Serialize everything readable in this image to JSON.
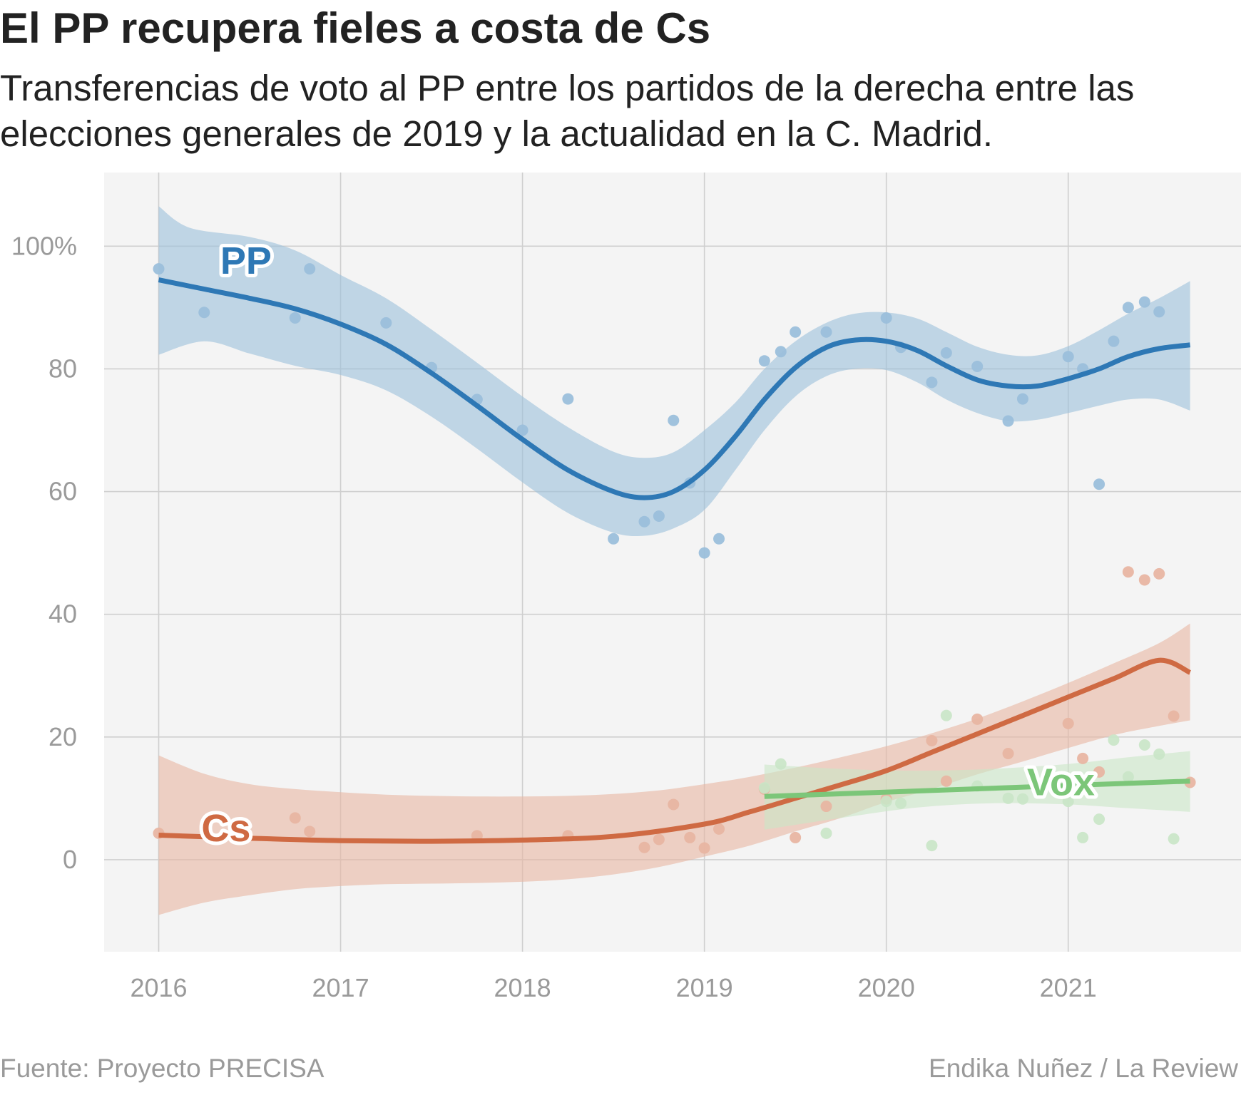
{
  "header": {
    "title": "El PP recupera fieles a costa de Cs",
    "subtitle": "Transferencias de voto al PP entre los partidos de la derecha entre las elecciones generales de 2019 y la actualidad en la C. Madrid."
  },
  "footer": {
    "source": "Fuente: Proyecto PRECISA",
    "credit": "Endika Nuñez / La Review"
  },
  "chart_data": {
    "type": "scatter",
    "title": "El PP recupera fieles a costa de Cs",
    "subtitle": "Transferencias de voto al PP entre los partidos de la derecha entre las elecciones generales de 2019 y la actualidad en la C. Madrid.",
    "xlabel": "",
    "ylabel": "",
    "xlim": [
      2015.7,
      2021.95
    ],
    "ylim": [
      -15,
      112
    ],
    "x_ticks": [
      2016,
      2017,
      2018,
      2019,
      2020,
      2021
    ],
    "x_tick_labels": [
      "2016",
      "2017",
      "2018",
      "2019",
      "2020",
      "2021"
    ],
    "y_ticks": [
      0,
      20,
      40,
      60,
      80,
      100
    ],
    "y_tick_labels": [
      "0",
      "20",
      "40",
      "60",
      "80",
      "100%"
    ],
    "grid": true,
    "legend": "direct labels on lines",
    "background": "#f4f4f4",
    "series": [
      {
        "name": "PP",
        "color": "#2e78b5",
        "band_color": "#9bbfdb",
        "points": [
          [
            2016.0,
            96.3
          ],
          [
            2016.25,
            89.2
          ],
          [
            2016.75,
            88.3
          ],
          [
            2016.83,
            96.3
          ],
          [
            2017.25,
            87.5
          ],
          [
            2017.5,
            80.2
          ],
          [
            2017.75,
            75.0
          ],
          [
            2018.0,
            70.0
          ],
          [
            2018.25,
            75.1
          ],
          [
            2018.5,
            52.3
          ],
          [
            2018.67,
            55.1
          ],
          [
            2018.75,
            56.0
          ],
          [
            2018.83,
            71.6
          ],
          [
            2018.92,
            61.4
          ],
          [
            2019.0,
            50.0
          ],
          [
            2019.08,
            52.3
          ],
          [
            2019.33,
            81.3
          ],
          [
            2019.42,
            82.8
          ],
          [
            2019.5,
            86.0
          ],
          [
            2019.67,
            86.0
          ],
          [
            2020.0,
            88.3
          ],
          [
            2020.08,
            83.5
          ],
          [
            2020.25,
            77.8
          ],
          [
            2020.33,
            82.6
          ],
          [
            2020.5,
            80.4
          ],
          [
            2020.67,
            71.5
          ],
          [
            2020.75,
            75.1
          ],
          [
            2021.0,
            82.0
          ],
          [
            2021.08,
            80.0
          ],
          [
            2021.17,
            61.2
          ],
          [
            2021.25,
            84.5
          ],
          [
            2021.33,
            90.0
          ],
          [
            2021.42,
            90.9
          ],
          [
            2021.5,
            89.3
          ]
        ],
        "fit": [
          [
            2016.0,
            94.5
          ],
          [
            2016.25,
            93.0
          ],
          [
            2016.5,
            91.5
          ],
          [
            2016.75,
            89.8
          ],
          [
            2017.0,
            87.3
          ],
          [
            2017.25,
            84.0
          ],
          [
            2017.5,
            79.3
          ],
          [
            2017.75,
            74.0
          ],
          [
            2018.0,
            68.5
          ],
          [
            2018.25,
            63.5
          ],
          [
            2018.5,
            60.0
          ],
          [
            2018.67,
            59.0
          ],
          [
            2018.83,
            60.0
          ],
          [
            2019.0,
            63.5
          ],
          [
            2019.17,
            69.0
          ],
          [
            2019.33,
            75.0
          ],
          [
            2019.5,
            80.2
          ],
          [
            2019.67,
            83.5
          ],
          [
            2019.83,
            84.7
          ],
          [
            2020.0,
            84.5
          ],
          [
            2020.17,
            83.0
          ],
          [
            2020.33,
            80.5
          ],
          [
            2020.5,
            78.2
          ],
          [
            2020.67,
            77.2
          ],
          [
            2020.83,
            77.2
          ],
          [
            2021.0,
            78.4
          ],
          [
            2021.17,
            80.0
          ],
          [
            2021.33,
            82.0
          ],
          [
            2021.5,
            83.3
          ],
          [
            2021.67,
            83.9
          ]
        ],
        "band_upper": [
          [
            2016.0,
            106.5
          ],
          [
            2016.17,
            103.0
          ],
          [
            2016.5,
            101.5
          ],
          [
            2016.75,
            99.3
          ],
          [
            2017.0,
            95.3
          ],
          [
            2017.25,
            91.5
          ],
          [
            2017.5,
            86.4
          ],
          [
            2017.75,
            81.0
          ],
          [
            2018.0,
            75.5
          ],
          [
            2018.25,
            70.5
          ],
          [
            2018.5,
            66.5
          ],
          [
            2018.67,
            65.5
          ],
          [
            2018.83,
            66.4
          ],
          [
            2019.0,
            70.0
          ],
          [
            2019.17,
            74.5
          ],
          [
            2019.33,
            80.0
          ],
          [
            2019.5,
            84.5
          ],
          [
            2019.67,
            87.5
          ],
          [
            2019.83,
            89.0
          ],
          [
            2020.0,
            89.2
          ],
          [
            2020.17,
            88.2
          ],
          [
            2020.33,
            86.0
          ],
          [
            2020.5,
            83.6
          ],
          [
            2020.67,
            82.3
          ],
          [
            2020.83,
            82.2
          ],
          [
            2021.0,
            83.7
          ],
          [
            2021.17,
            86.3
          ],
          [
            2021.33,
            89.0
          ],
          [
            2021.5,
            91.5
          ],
          [
            2021.67,
            94.3
          ]
        ],
        "band_lower": [
          [
            2016.0,
            82.3
          ],
          [
            2016.25,
            84.5
          ],
          [
            2016.5,
            82.5
          ],
          [
            2016.75,
            80.5
          ],
          [
            2017.0,
            79.0
          ],
          [
            2017.25,
            76.5
          ],
          [
            2017.5,
            72.2
          ],
          [
            2017.75,
            67.0
          ],
          [
            2018.0,
            61.5
          ],
          [
            2018.25,
            56.5
          ],
          [
            2018.5,
            53.3
          ],
          [
            2018.67,
            52.8
          ],
          [
            2018.83,
            54.0
          ],
          [
            2019.0,
            57.0
          ],
          [
            2019.17,
            63.5
          ],
          [
            2019.33,
            70.0
          ],
          [
            2019.5,
            75.5
          ],
          [
            2019.67,
            78.8
          ],
          [
            2019.83,
            80.0
          ],
          [
            2020.0,
            79.8
          ],
          [
            2020.17,
            77.8
          ],
          [
            2020.33,
            75.0
          ],
          [
            2020.5,
            72.8
          ],
          [
            2020.67,
            71.5
          ],
          [
            2020.83,
            71.7
          ],
          [
            2021.0,
            72.8
          ],
          [
            2021.17,
            74.0
          ],
          [
            2021.33,
            75.0
          ],
          [
            2021.5,
            75.0
          ],
          [
            2021.67,
            73.2
          ]
        ]
      },
      {
        "name": "Cs",
        "color": "#cf6a43",
        "band_color": "#e8b5a2",
        "points": [
          [
            2016.0,
            4.3
          ],
          [
            2016.75,
            6.8
          ],
          [
            2016.83,
            4.6
          ],
          [
            2017.75,
            3.9
          ],
          [
            2018.25,
            3.9
          ],
          [
            2018.67,
            2.0
          ],
          [
            2018.75,
            3.3
          ],
          [
            2018.83,
            9.0
          ],
          [
            2018.92,
            3.6
          ],
          [
            2019.0,
            1.9
          ],
          [
            2019.08,
            5.0
          ],
          [
            2019.33,
            11.5
          ],
          [
            2019.5,
            3.6
          ],
          [
            2019.67,
            8.7
          ],
          [
            2020.0,
            9.9
          ],
          [
            2020.25,
            19.4
          ],
          [
            2020.33,
            12.8
          ],
          [
            2020.5,
            22.9
          ],
          [
            2020.67,
            17.3
          ],
          [
            2021.0,
            22.2
          ],
          [
            2021.08,
            16.5
          ],
          [
            2021.17,
            14.3
          ],
          [
            2021.33,
            46.9
          ],
          [
            2021.42,
            45.6
          ],
          [
            2021.5,
            46.6
          ],
          [
            2021.58,
            23.4
          ],
          [
            2021.67,
            12.6
          ]
        ],
        "fit": [
          [
            2016.0,
            4.0
          ],
          [
            2016.5,
            3.5
          ],
          [
            2017.0,
            3.1
          ],
          [
            2017.5,
            3.0
          ],
          [
            2018.0,
            3.2
          ],
          [
            2018.5,
            3.8
          ],
          [
            2019.0,
            5.8
          ],
          [
            2019.25,
            7.8
          ],
          [
            2019.5,
            10.0
          ],
          [
            2019.75,
            12.2
          ],
          [
            2020.0,
            14.5
          ],
          [
            2020.25,
            17.5
          ],
          [
            2020.5,
            20.5
          ],
          [
            2020.75,
            23.5
          ],
          [
            2021.0,
            26.5
          ],
          [
            2021.25,
            29.5
          ],
          [
            2021.5,
            32.5
          ],
          [
            2021.67,
            30.5
          ]
        ],
        "band_upper": [
          [
            2016.0,
            17.0
          ],
          [
            2016.25,
            14.0
          ],
          [
            2016.5,
            12.3
          ],
          [
            2016.75,
            11.5
          ],
          [
            2017.0,
            11.0
          ],
          [
            2017.25,
            10.6
          ],
          [
            2017.5,
            10.4
          ],
          [
            2017.75,
            10.3
          ],
          [
            2018.0,
            10.3
          ],
          [
            2018.25,
            10.4
          ],
          [
            2018.5,
            10.7
          ],
          [
            2018.75,
            11.3
          ],
          [
            2019.0,
            12.3
          ],
          [
            2019.25,
            13.5
          ],
          [
            2019.5,
            15.0
          ],
          [
            2019.75,
            16.7
          ],
          [
            2020.0,
            18.5
          ],
          [
            2020.25,
            20.6
          ],
          [
            2020.5,
            23.0
          ],
          [
            2020.75,
            25.8
          ],
          [
            2021.0,
            28.8
          ],
          [
            2021.25,
            32.0
          ],
          [
            2021.5,
            35.3
          ],
          [
            2021.67,
            38.5
          ]
        ],
        "band_lower": [
          [
            2016.0,
            -9.0
          ],
          [
            2016.25,
            -7.0
          ],
          [
            2016.5,
            -5.8
          ],
          [
            2016.75,
            -4.8
          ],
          [
            2017.0,
            -4.3
          ],
          [
            2017.25,
            -4.0
          ],
          [
            2017.5,
            -3.9
          ],
          [
            2017.75,
            -3.8
          ],
          [
            2018.0,
            -3.6
          ],
          [
            2018.25,
            -3.2
          ],
          [
            2018.5,
            -2.4
          ],
          [
            2018.75,
            -1.2
          ],
          [
            2019.0,
            0.5
          ],
          [
            2019.25,
            2.3
          ],
          [
            2019.5,
            4.6
          ],
          [
            2019.75,
            6.8
          ],
          [
            2020.0,
            9.4
          ],
          [
            2020.25,
            11.5
          ],
          [
            2020.5,
            13.9
          ],
          [
            2020.75,
            16.0
          ],
          [
            2021.0,
            18.2
          ],
          [
            2021.25,
            20.3
          ],
          [
            2021.5,
            21.8
          ],
          [
            2021.67,
            22.7
          ]
        ]
      },
      {
        "name": "Vox",
        "color": "#7cc679",
        "band_color": "#c9e6c6",
        "points": [
          [
            2019.33,
            11.7
          ],
          [
            2019.42,
            15.6
          ],
          [
            2019.67,
            4.3
          ],
          [
            2020.0,
            9.5
          ],
          [
            2020.08,
            9.2
          ],
          [
            2020.25,
            2.3
          ],
          [
            2020.33,
            23.5
          ],
          [
            2020.5,
            12.0
          ],
          [
            2020.67,
            10.0
          ],
          [
            2020.75,
            9.9
          ],
          [
            2020.83,
            12.3
          ],
          [
            2021.0,
            9.5
          ],
          [
            2021.08,
            3.6
          ],
          [
            2021.17,
            6.6
          ],
          [
            2021.25,
            19.5
          ],
          [
            2021.33,
            13.5
          ],
          [
            2021.42,
            18.7
          ],
          [
            2021.5,
            17.2
          ],
          [
            2021.58,
            3.4
          ]
        ],
        "fit": [
          [
            2019.33,
            10.3
          ],
          [
            2021.67,
            12.8
          ]
        ],
        "band_upper": [
          [
            2019.33,
            15.5
          ],
          [
            2019.75,
            14.8
          ],
          [
            2020.17,
            14.5
          ],
          [
            2020.58,
            14.8
          ],
          [
            2021.0,
            15.6
          ],
          [
            2021.33,
            16.7
          ],
          [
            2021.67,
            17.7
          ]
        ],
        "band_lower": [
          [
            2019.33,
            4.9
          ],
          [
            2019.75,
            6.8
          ],
          [
            2020.17,
            8.5
          ],
          [
            2020.58,
            9.2
          ],
          [
            2021.0,
            9.0
          ],
          [
            2021.33,
            8.4
          ],
          [
            2021.67,
            7.8
          ]
        ]
      }
    ]
  }
}
